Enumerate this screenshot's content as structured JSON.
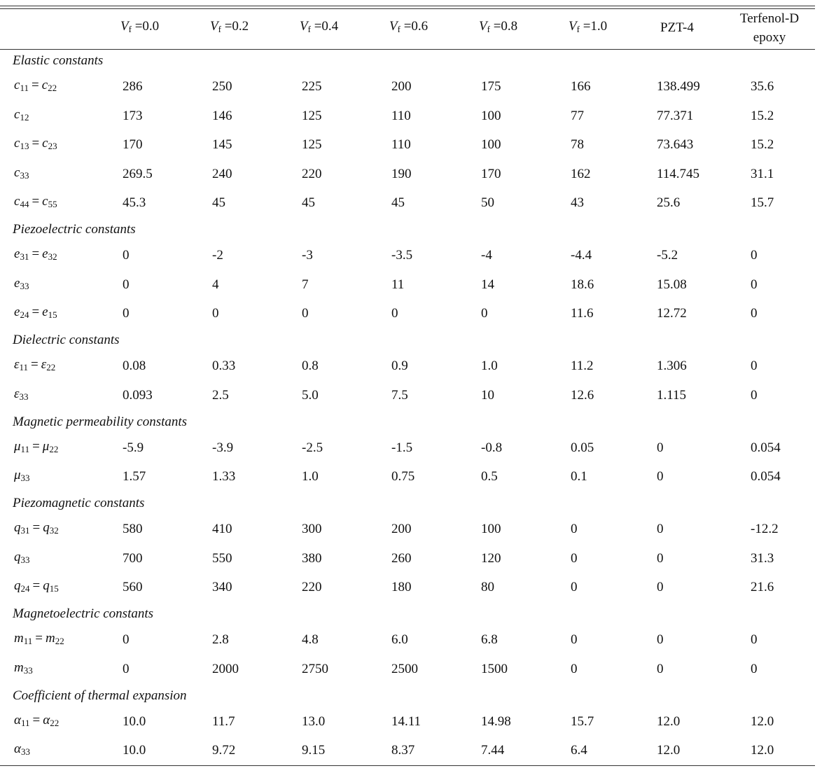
{
  "table": {
    "header": [
      "",
      {
        "v": "V",
        "sub": "f",
        "rest": " =0.0"
      },
      {
        "v": "V",
        "sub": "f",
        "rest": " =0.2"
      },
      {
        "v": "V",
        "sub": "f",
        "rest": " =0.4"
      },
      {
        "v": "V",
        "sub": "f",
        "rest": " =0.6"
      },
      {
        "v": "V",
        "sub": "f",
        "rest": " =0.8"
      },
      {
        "v": "V",
        "sub": "f",
        "rest": " =1.0"
      },
      "PZT-4",
      [
        "Terfenol-D",
        "epoxy"
      ]
    ],
    "sections": [
      {
        "title": "Elastic constants",
        "rows": [
          {
            "label": [
              {
                "v": "c",
                "sub": "11"
              },
              "=",
              {
                "v": "c",
                "sub": "22"
              }
            ],
            "values": [
              "286",
              "250",
              "225",
              "200",
              "175",
              "166",
              "138.499",
              "35.6"
            ]
          },
          {
            "label": [
              {
                "v": "c",
                "sub": "12"
              }
            ],
            "values": [
              "173",
              "146",
              "125",
              "110",
              "100",
              "77",
              "77.371",
              "15.2"
            ]
          },
          {
            "label": [
              {
                "v": "c",
                "sub": "13"
              },
              "=",
              {
                "v": "c",
                "sub": "23"
              }
            ],
            "values": [
              "170",
              "145",
              "125",
              "110",
              "100",
              "78",
              "73.643",
              "15.2"
            ]
          },
          {
            "label": [
              {
                "v": "c",
                "sub": "33"
              }
            ],
            "values": [
              "269.5",
              "240",
              "220",
              "190",
              "170",
              "162",
              "114.745",
              "31.1"
            ]
          },
          {
            "label": [
              {
                "v": "c",
                "sub": "44"
              },
              "=",
              {
                "v": "c",
                "sub": "55"
              }
            ],
            "values": [
              "45.3",
              "45",
              "45",
              "45",
              "50",
              "43",
              "25.6",
              "15.7"
            ]
          }
        ]
      },
      {
        "title": "Piezoelectric constants",
        "rows": [
          {
            "label": [
              {
                "v": "e",
                "sub": "31"
              },
              "=",
              {
                "v": "e",
                "sub": "32"
              }
            ],
            "values": [
              "0",
              "-2",
              "-3",
              "-3.5",
              "-4",
              "-4.4",
              "-5.2",
              "0"
            ]
          },
          {
            "label": [
              {
                "v": "e",
                "sub": "33"
              }
            ],
            "values": [
              "0",
              "4",
              "7",
              "11",
              "14",
              "18.6",
              "15.08",
              "0"
            ]
          },
          {
            "label": [
              {
                "v": "e",
                "sub": "24"
              },
              "=",
              {
                "v": "e",
                "sub": "15"
              }
            ],
            "values": [
              "0",
              "0",
              "0",
              "0",
              "0",
              "11.6",
              "12.72",
              "0"
            ]
          }
        ]
      },
      {
        "title": "Dielectric constants",
        "rows": [
          {
            "label": [
              {
                "v": "ε",
                "sub": "11"
              },
              "=",
              {
                "v": "ε",
                "sub": "22"
              }
            ],
            "values": [
              "0.08",
              "0.33",
              "0.8",
              "0.9",
              "1.0",
              "11.2",
              "1.306",
              "0"
            ]
          },
          {
            "label": [
              {
                "v": "ε",
                "sub": "33"
              }
            ],
            "values": [
              "0.093",
              "2.5",
              "5.0",
              "7.5",
              "10",
              "12.6",
              "1.115",
              "0"
            ]
          }
        ]
      },
      {
        "title": "Magnetic permeability constants",
        "rows": [
          {
            "label": [
              {
                "v": "μ",
                "sub": "11"
              },
              "=",
              {
                "v": "μ",
                "sub": "22"
              }
            ],
            "values": [
              "-5.9",
              "-3.9",
              "-2.5",
              "-1.5",
              "-0.8",
              "0.05",
              "0",
              "0.054"
            ]
          },
          {
            "label": [
              {
                "v": "μ",
                "sub": "33"
              }
            ],
            "values": [
              "1.57",
              "1.33",
              "1.0",
              "0.75",
              "0.5",
              "0.1",
              "0",
              "0.054"
            ]
          }
        ]
      },
      {
        "title": "Piezomagnetic constants",
        "rows": [
          {
            "label": [
              {
                "v": "q",
                "sub": "31"
              },
              "=",
              {
                "v": "q",
                "sub": "32"
              }
            ],
            "values": [
              "580",
              "410",
              "300",
              "200",
              "100",
              "0",
              "0",
              "-12.2"
            ]
          },
          {
            "label": [
              {
                "v": "q",
                "sub": "33"
              }
            ],
            "values": [
              "700",
              "550",
              "380",
              "260",
              "120",
              "0",
              "0",
              "31.3"
            ]
          },
          {
            "label": [
              {
                "v": "q",
                "sub": "24"
              },
              "=",
              {
                "v": "q",
                "sub": "15"
              }
            ],
            "values": [
              "560",
              "340",
              "220",
              "180",
              "80",
              "0",
              "0",
              "21.6"
            ]
          }
        ]
      },
      {
        "title": "Magnetoelectric constants",
        "rows": [
          {
            "label": [
              {
                "v": "m",
                "sub": "11"
              },
              "=",
              {
                "v": "m",
                "sub": "22"
              }
            ],
            "values": [
              "0",
              "2.8",
              "4.8",
              "6.0",
              "6.8",
              "0",
              "0",
              "0"
            ]
          },
          {
            "label": [
              {
                "v": "m",
                "sub": "33"
              }
            ],
            "values": [
              "0",
              "2000",
              "2750",
              "2500",
              "1500",
              "0",
              "0",
              "0"
            ]
          }
        ]
      },
      {
        "title": "Coefficient of thermal expansion",
        "rows": [
          {
            "label": [
              {
                "v": "α",
                "sub": "11"
              },
              "=",
              {
                "v": "α",
                "sub": "22"
              }
            ],
            "values": [
              "10.0",
              "11.7",
              "13.0",
              "14.11",
              "14.98",
              "15.7",
              "12.0",
              "12.0"
            ]
          },
          {
            "label": [
              {
                "v": "α",
                "sub": "33"
              }
            ],
            "values": [
              "10.0",
              "9.72",
              "9.15",
              "8.37",
              "7.44",
              "6.4",
              "12.0",
              "12.0"
            ]
          }
        ]
      }
    ]
  }
}
